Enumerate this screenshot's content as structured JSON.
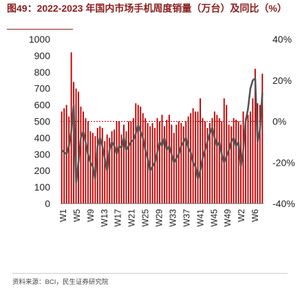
{
  "title": "图49：2022-2023 年国内市场手机周度销量（万台）及同比（%）",
  "source": "资料来源：BCI，民生证券研究院",
  "colors": {
    "bar": "#c00000",
    "line": "#555555",
    "refline": "#c00000",
    "title": "#8a1d1d"
  },
  "chart_data": {
    "type": "bar",
    "title": "图49：2022-2023 年国内市场手机周度销量（万台）及同比（%）",
    "x_tick_labels": [
      "W1",
      "W5",
      "W9",
      "W13",
      "W17",
      "W21",
      "W25",
      "W29",
      "W33",
      "W37",
      "W41",
      "W45",
      "W49",
      "W2",
      "W6"
    ],
    "y_left": {
      "ylim": [
        0,
        1000
      ],
      "ticks": [
        0,
        100,
        200,
        300,
        400,
        500,
        600,
        700,
        800,
        900,
        1000
      ]
    },
    "y_right": {
      "ylim": [
        -40,
        40
      ],
      "ticks": [
        "-40%",
        "-20%",
        "0%",
        "20%",
        "40%"
      ]
    },
    "reference_line": {
      "axis": "right",
      "value": 0,
      "style": "dotted"
    },
    "grid": false,
    "legend": "none",
    "series": [
      {
        "type": "bar",
        "axis": "left",
        "values": [
          560,
          580,
          600,
          530,
          920,
          740,
          700,
          680,
          590,
          560,
          520,
          500,
          440,
          430,
          410,
          460,
          470,
          460,
          380,
          420,
          400,
          440,
          450,
          500,
          500,
          420,
          480,
          440,
          500,
          500,
          520,
          610,
          600,
          590,
          550,
          520,
          490,
          470,
          490,
          460,
          520,
          500,
          540,
          470,
          510,
          540,
          480,
          430,
          480,
          500,
          490,
          470,
          500,
          530,
          550,
          580,
          560,
          560,
          640,
          520,
          500,
          460,
          490,
          520,
          560,
          540,
          520,
          500,
          640,
          600,
          480,
          470,
          520,
          510,
          500,
          480,
          560,
          520,
          540,
          560,
          640,
          820,
          610,
          600,
          790
        ]
      },
      {
        "type": "line",
        "axis": "right",
        "values": [
          -14,
          -15,
          -16,
          -12,
          -5,
          8,
          -30,
          -20,
          -8,
          -5,
          -10,
          -16,
          -20,
          -22,
          -28,
          -12,
          -8,
          -12,
          -18,
          -24,
          -14,
          -10,
          -12,
          -16,
          -12,
          -13,
          -8,
          -14,
          -12,
          -10,
          -9,
          -6,
          -2,
          -5,
          -8,
          -14,
          -18,
          -24,
          -22,
          -20,
          -15,
          -10,
          -12,
          -8,
          -14,
          -12,
          -16,
          -20,
          -18,
          -16,
          -12,
          -10,
          -8,
          -13,
          -15,
          -20,
          -22,
          -28,
          -24,
          -18,
          -14,
          -10,
          -6,
          -3,
          -8,
          -12,
          -10,
          -16,
          -20,
          -17,
          -14,
          -10,
          -8,
          -12,
          -10,
          -22,
          -14,
          0,
          6,
          16,
          20,
          21,
          -10,
          -4,
          14
        ]
      }
    ]
  }
}
